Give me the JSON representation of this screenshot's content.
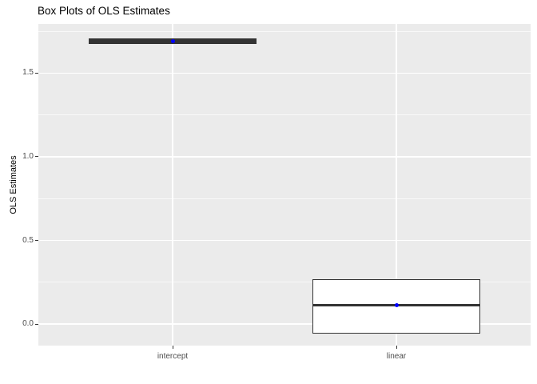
{
  "title": "Box Plots of OLS Estimates",
  "y_axis": {
    "label": "OLS Estimates",
    "tick_labels": [
      "0.0",
      "0.5",
      "1.0",
      "1.5"
    ]
  },
  "x_axis": {
    "tick_labels": [
      "intercept",
      "linear"
    ]
  },
  "colors": {
    "panel_bg": "#ebebeb",
    "grid": "#ffffff",
    "box_border": "#333333",
    "box_fill": "#ffffff",
    "mean_point": "#0000ff",
    "tick_text": "#4d4d4d",
    "title_text": "#000000"
  },
  "chart_data": {
    "type": "boxplot",
    "title": "Box Plots of OLS Estimates",
    "xlabel": "",
    "ylabel": "OLS Estimates",
    "ylim": [
      -0.129,
      1.794
    ],
    "y_major_ticks": [
      0.0,
      0.5,
      1.0,
      1.5
    ],
    "y_minor_ticks": [
      0.25,
      0.75,
      1.25,
      1.75
    ],
    "grid": "on",
    "legend": "none",
    "categories": [
      "intercept",
      "linear"
    ],
    "series": [
      {
        "category": "intercept",
        "whisker_low": 1.675,
        "q1": 1.675,
        "median": 1.69,
        "q3": 1.707,
        "whisker_high": 1.707,
        "mean_point": 1.69
      },
      {
        "category": "linear",
        "whisker_low": -0.058,
        "q1": -0.058,
        "median": 0.112,
        "q3": 0.27,
        "whisker_high": 0.27,
        "mean_point": 0.112
      }
    ]
  }
}
